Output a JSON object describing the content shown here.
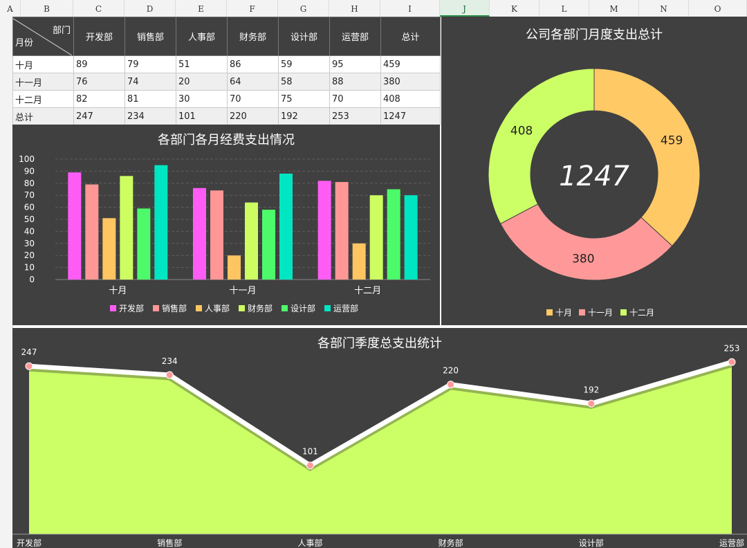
{
  "sheet": {
    "columns": [
      "A",
      "B",
      "C",
      "D",
      "E",
      "F",
      "G",
      "H",
      "I",
      "J",
      "K",
      "L",
      "M",
      "N",
      "O"
    ],
    "active_column": "J"
  },
  "table": {
    "corner_top": "部门",
    "corner_bottom": "月份",
    "headers": [
      "开发部",
      "销售部",
      "人事部",
      "财务部",
      "设计部",
      "运营部",
      "总计"
    ],
    "rows": [
      {
        "label": "十月",
        "values": [
          "89",
          "79",
          "51",
          "86",
          "59",
          "95",
          "459"
        ]
      },
      {
        "label": "十一月",
        "values": [
          "76",
          "74",
          "20",
          "64",
          "58",
          "88",
          "380"
        ]
      },
      {
        "label": "十二月",
        "values": [
          "82",
          "81",
          "30",
          "70",
          "75",
          "70",
          "408"
        ]
      },
      {
        "label": "总计",
        "values": [
          "247",
          "234",
          "101",
          "220",
          "192",
          "253",
          "1247"
        ]
      }
    ]
  },
  "colors": {
    "panel_bg": "#404040",
    "series": [
      "#ff5cf6",
      "#ff9796",
      "#ffc561",
      "#cdfd61",
      "#4dfb6a",
      "#00e6c3"
    ],
    "donut": [
      "#ffc966",
      "#ff9999",
      "#ccff66"
    ],
    "area_fill": "#ccff66",
    "area_line": "#ffffff",
    "marker": "#ff9999"
  },
  "chart_data": [
    {
      "type": "bar",
      "title": "各部门各月经费支出情况",
      "categories": [
        "十月",
        "十一月",
        "十二月"
      ],
      "series": [
        {
          "name": "开发部",
          "values": [
            89,
            76,
            82
          ]
        },
        {
          "name": "销售部",
          "values": [
            79,
            74,
            81
          ]
        },
        {
          "name": "人事部",
          "values": [
            51,
            20,
            30
          ]
        },
        {
          "name": "财务部",
          "values": [
            86,
            64,
            70
          ]
        },
        {
          "name": "设计部",
          "values": [
            59,
            58,
            75
          ]
        },
        {
          "name": "运营部",
          "values": [
            95,
            88,
            70
          ]
        }
      ],
      "ylim": [
        0,
        100
      ],
      "yticks": [
        0,
        10,
        20,
        30,
        40,
        50,
        60,
        70,
        80,
        90,
        100
      ],
      "grid": true,
      "legend": "bottom"
    },
    {
      "type": "pie",
      "title": "公司各部门月度支出总计",
      "labels": [
        "十月",
        "十一月",
        "十二月"
      ],
      "values": [
        459,
        380,
        408
      ],
      "center_label": "1247",
      "legend": "bottom"
    },
    {
      "type": "area",
      "title": "各部门季度总支出统计",
      "categories": [
        "开发部",
        "销售部",
        "人事部",
        "财务部",
        "设计部",
        "运营部"
      ],
      "values": [
        247,
        234,
        101,
        220,
        192,
        253
      ],
      "legend": "none"
    }
  ]
}
